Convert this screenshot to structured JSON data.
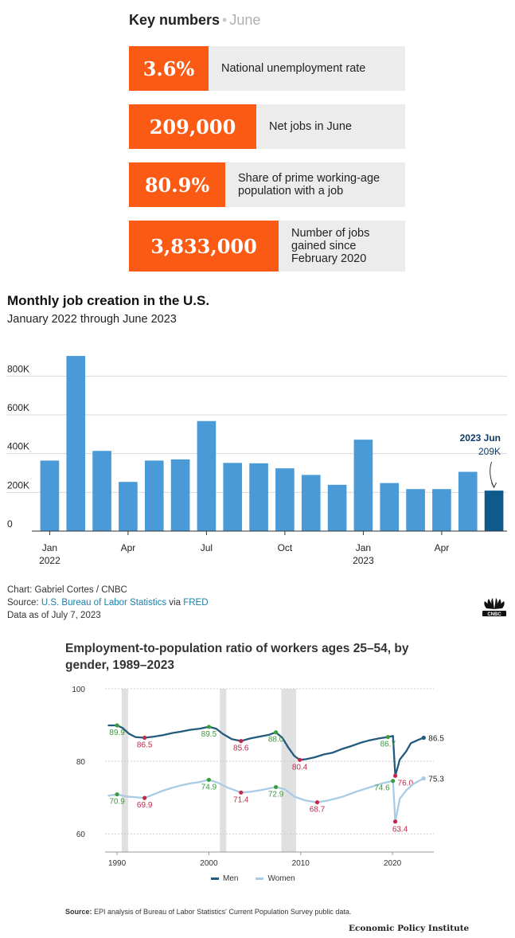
{
  "key_numbers": {
    "title": "Key numbers",
    "separator": "•",
    "month": "June",
    "accent": "#fa5a14",
    "stats": [
      {
        "value": "3.6%",
        "label": "National unemployment rate"
      },
      {
        "value": "209,000",
        "label": "Net jobs in June"
      },
      {
        "value": "80.9%",
        "label": "Share of prime working-age population with a job"
      },
      {
        "value": "3,833,000",
        "label": "Number of jobs gained since February 2020"
      }
    ]
  },
  "chart_data": [
    {
      "type": "bar",
      "title": "Monthly job creation in the U.S.",
      "subtitle": "January 2022 through June 2023",
      "categories": [
        "2022-01",
        "2022-02",
        "2022-03",
        "2022-04",
        "2022-05",
        "2022-06",
        "2022-07",
        "2022-08",
        "2022-09",
        "2022-10",
        "2022-11",
        "2022-12",
        "2023-01",
        "2023-02",
        "2023-03",
        "2023-04",
        "2023-05",
        "2023-06"
      ],
      "values": [
        364000,
        904000,
        414000,
        254000,
        364000,
        370000,
        568000,
        352000,
        350000,
        324000,
        290000,
        239000,
        472000,
        248000,
        217000,
        217000,
        306000,
        209000
      ],
      "ylim": [
        0,
        900000
      ],
      "yticks": [
        {
          "value": 0,
          "label": "0"
        },
        {
          "value": 200000,
          "label": "200K"
        },
        {
          "value": 400000,
          "label": "400K"
        },
        {
          "value": 600000,
          "label": "600K"
        },
        {
          "value": 800000,
          "label": "800K"
        }
      ],
      "xticks": [
        {
          "index": 0,
          "label": "Jan",
          "sub": "2022"
        },
        {
          "index": 3,
          "label": "Apr",
          "sub": ""
        },
        {
          "index": 6,
          "label": "Jul",
          "sub": ""
        },
        {
          "index": 9,
          "label": "Oct",
          "sub": ""
        },
        {
          "index": 12,
          "label": "Jan",
          "sub": "2023"
        },
        {
          "index": 15,
          "label": "Apr",
          "sub": ""
        }
      ],
      "annotation": {
        "index": 17,
        "line1": "2023 Jun",
        "line2": "209K"
      },
      "colors": {
        "bar": "#4a9ad8",
        "highlight": "#0f5a8c",
        "annotation": "#0f3a66",
        "grid": "#d9d9d9"
      },
      "grid": true,
      "legend": "none"
    },
    {
      "type": "line",
      "title": "Employment-to-population ratio of workers ages 25–54, by gender, 1989–2023",
      "xlim": [
        1988,
        2024.5
      ],
      "ylim": [
        55,
        100
      ],
      "yticks": [
        60,
        80,
        100
      ],
      "xticks": [
        1990,
        2000,
        2010,
        2020
      ],
      "recessions": [
        [
          1990.5,
          1991.2
        ],
        [
          2001.2,
          2001.9
        ],
        [
          2007.9,
          2009.5
        ]
      ],
      "series": [
        {
          "name": "Men",
          "color": "#235a7d",
          "end_label": "86.5",
          "points": [
            [
              1989,
              89.9
            ],
            [
              1990,
              89.9
            ],
            [
              1990.6,
              89.2
            ],
            [
              1991.3,
              87.6
            ],
            [
              1992,
              86.7
            ],
            [
              1993,
              86.5
            ],
            [
              1994,
              86.8
            ],
            [
              1995,
              87.2
            ],
            [
              1996,
              87.8
            ],
            [
              1997,
              88.2
            ],
            [
              1998,
              88.7
            ],
            [
              1999,
              89.0
            ],
            [
              2000,
              89.5
            ],
            [
              2000.8,
              89.0
            ],
            [
              2001.5,
              87.6
            ],
            [
              2002.5,
              86.1
            ],
            [
              2003.5,
              85.6
            ],
            [
              2004.5,
              86.3
            ],
            [
              2005.5,
              86.8
            ],
            [
              2006.5,
              87.3
            ],
            [
              2007.3,
              88.0
            ],
            [
              2008,
              86.5
            ],
            [
              2008.6,
              84.0
            ],
            [
              2009.3,
              81.5
            ],
            [
              2009.9,
              80.4
            ],
            [
              2010.6,
              80.6
            ],
            [
              2011.5,
              81.1
            ],
            [
              2012.5,
              81.9
            ],
            [
              2013.5,
              82.4
            ],
            [
              2014.5,
              83.4
            ],
            [
              2015.5,
              84.2
            ],
            [
              2016.5,
              85.1
            ],
            [
              2017.5,
              85.8
            ],
            [
              2018.5,
              86.3
            ],
            [
              2019.5,
              86.7
            ],
            [
              2020.05,
              87.0
            ],
            [
              2020.3,
              76.0
            ],
            [
              2020.8,
              80.5
            ],
            [
              2021.5,
              82.8
            ],
            [
              2022,
              85.0
            ],
            [
              2022.8,
              85.9
            ],
            [
              2023.4,
              86.5
            ]
          ],
          "labels": [
            {
              "x": 1990,
              "y": 89.9,
              "text": "89.9",
              "kind": "peak"
            },
            {
              "x": 1993,
              "y": 86.5,
              "text": "86.5",
              "kind": "trough"
            },
            {
              "x": 2000,
              "y": 89.5,
              "text": "89.5",
              "kind": "peak"
            },
            {
              "x": 2003.5,
              "y": 85.6,
              "text": "85.6",
              "kind": "trough"
            },
            {
              "x": 2007.3,
              "y": 88.0,
              "text": "88.0",
              "kind": "peak"
            },
            {
              "x": 2009.9,
              "y": 80.4,
              "text": "80.4",
              "kind": "trough"
            },
            {
              "x": 2019.5,
              "y": 86.7,
              "text": "86.7",
              "kind": "peak"
            },
            {
              "x": 2020.3,
              "y": 76.0,
              "text": "76.0",
              "kind": "trough"
            }
          ]
        },
        {
          "name": "Women",
          "color": "#a8cce6",
          "end_label": "75.3",
          "points": [
            [
              1989,
              70.5
            ],
            [
              1990,
              70.9
            ],
            [
              1991,
              70.3
            ],
            [
              1992,
              70.1
            ],
            [
              1993,
              69.9
            ],
            [
              1994,
              70.9
            ],
            [
              1995,
              71.9
            ],
            [
              1996,
              72.7
            ],
            [
              1997,
              73.4
            ],
            [
              1998,
              73.9
            ],
            [
              1999,
              74.3
            ],
            [
              2000,
              74.9
            ],
            [
              2001,
              74.1
            ],
            [
              2002,
              72.8
            ],
            [
              2003.5,
              71.4
            ],
            [
              2004.5,
              71.6
            ],
            [
              2005.5,
              72.0
            ],
            [
              2006.5,
              72.5
            ],
            [
              2007.3,
              72.9
            ],
            [
              2008.3,
              72.3
            ],
            [
              2009.3,
              70.3
            ],
            [
              2010.5,
              69.2
            ],
            [
              2011.8,
              68.7
            ],
            [
              2013,
              69.2
            ],
            [
              2014.5,
              70.2
            ],
            [
              2016,
              71.6
            ],
            [
              2017.5,
              72.8
            ],
            [
              2019,
              74.0
            ],
            [
              2020.05,
              74.6
            ],
            [
              2020.3,
              63.4
            ],
            [
              2020.8,
              69.7
            ],
            [
              2021.5,
              72.0
            ],
            [
              2022.3,
              73.8
            ],
            [
              2023.4,
              75.3
            ]
          ],
          "labels": [
            {
              "x": 1990,
              "y": 70.9,
              "text": "70.9",
              "kind": "peak"
            },
            {
              "x": 1993,
              "y": 69.9,
              "text": "69.9",
              "kind": "trough"
            },
            {
              "x": 2000,
              "y": 74.9,
              "text": "74.9",
              "kind": "peak"
            },
            {
              "x": 2003.5,
              "y": 71.4,
              "text": "71.4",
              "kind": "trough"
            },
            {
              "x": 2007.3,
              "y": 72.9,
              "text": "72.9",
              "kind": "peak"
            },
            {
              "x": 2011.8,
              "y": 68.7,
              "text": "68.7",
              "kind": "trough"
            },
            {
              "x": 2020.05,
              "y": 74.6,
              "text": "74.6",
              "kind": "peak"
            },
            {
              "x": 2020.3,
              "y": 63.4,
              "text": "63.4",
              "kind": "trough"
            }
          ]
        }
      ],
      "colors": {
        "peak": "#3a9d3a",
        "trough": "#c0294a",
        "recession": "#e0e0e0",
        "grid": "#cccccc"
      },
      "legend": "bottom-center"
    }
  ],
  "chart1_credits": {
    "byline": "Chart: Gabriel Cortes / CNBC",
    "source_prefix": "Source:",
    "source_link1": "U.S. Bureau of Labor Statistics",
    "source_via": "via",
    "source_link2": "FRED",
    "date_note": "Data as of July 7, 2023",
    "logo": "cnbc-peacock-logo"
  },
  "chart2_footer": {
    "source_label": "Source:",
    "source_text": "EPI analysis of Bureau of Labor Statistics' Current Population Survey public data.",
    "publisher": "Economic Policy Institute"
  }
}
